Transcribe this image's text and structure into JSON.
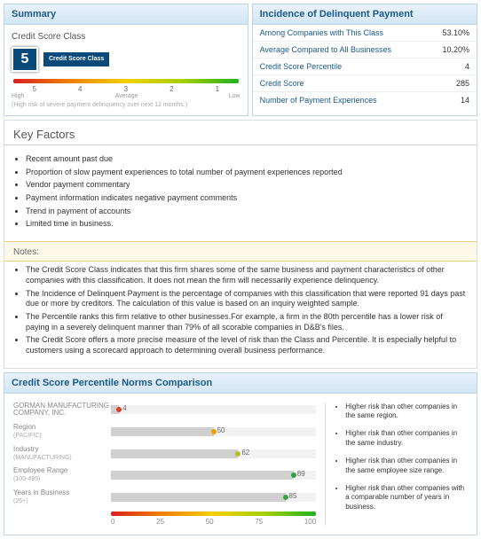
{
  "summary": {
    "header": "Summary",
    "title": "Credit Score Class",
    "score": "5",
    "score_label": "Credit Score\nClass",
    "score_box_bg": "#0a4a7a",
    "ticks": [
      "5",
      "4",
      "3",
      "2",
      "1"
    ],
    "tick_left": "High",
    "tick_mid": "Average",
    "tick_right": "Low",
    "footnote": "(High risk of severe payment delinquency over next 12 months.)",
    "gradient": [
      "#d92020",
      "#f08000",
      "#f5d000",
      "#a5d000",
      "#20b020"
    ]
  },
  "incidence": {
    "header": "Incidence of Delinquent Payment",
    "rows": [
      {
        "k": "Among Companies with This Class",
        "v": "53.10%"
      },
      {
        "k": "Average Compared to All Businesses",
        "v": "10.20%"
      },
      {
        "k": "Credit Score Percentile",
        "v": "4"
      },
      {
        "k": "Credit Score",
        "v": "285"
      },
      {
        "k": "Number of Payment Experiences",
        "v": "14"
      }
    ]
  },
  "factors": {
    "header": "Key Factors",
    "items": [
      "Recent amount past due",
      "Proportion of slow payment experiences to total number of payment experiences reported",
      "Vendor payment commentary",
      "Payment information indicates negative payment comments",
      "Trend in payment of accounts",
      "Limited time in business."
    ]
  },
  "notes": {
    "header": "Notes:",
    "items": [
      "The Credit Score Class indicates that this firm shares some of the same business and payment characteristics of other companies with this classification. It does not mean the firm will necessarily experience delinquency.",
      "The Incidence of Delinquent Payment is the percentage of companies with this classification that were reported 91 days past due or more by creditors. The calculation of this value is based on an inquiry weighted sample.",
      "The Percentile ranks this firm relative to other businesses.For example, a firm in the 80th percentile has a lower risk of paying in a severely delinquent manner than 79% of all scorable companies in D&B's files.",
      "The Credit Score offers a more precise measure of the level of risk than the Class and Percentile. It is especially helpful to customers using a scorecard approach to determining overall business performance."
    ]
  },
  "comparison": {
    "header": "Credit Score Percentile Norms Comparison",
    "rows": [
      {
        "label": "GORMAN MANUFACTURING COMPANY, INC.",
        "sub": "",
        "value": 4,
        "dot_color": "#e04020"
      },
      {
        "label": "Region",
        "sub": "(PACIFIC)",
        "value": 50,
        "dot_color": "#f0a000"
      },
      {
        "label": "Industry",
        "sub": "(MANUFACTURING)",
        "value": 62,
        "dot_color": "#b0c020"
      },
      {
        "label": "Employee Range",
        "sub": "(100-499)",
        "value": 89,
        "dot_color": "#30a040"
      },
      {
        "label": "Years in Business",
        "sub": "(26+)",
        "value": 85,
        "dot_color": "#40a040"
      }
    ],
    "axis_ticks": [
      "0",
      "25",
      "50",
      "75",
      "100"
    ],
    "bar_bg": "#d0d0d0",
    "side_notes": [
      "Higher risk than other companies in the same region.",
      "Higher risk than other companies in the same industry.",
      "Higher risk than other companies in the same employee size range.",
      "Higher risk than other companies with a comparable number of years in business."
    ]
  }
}
